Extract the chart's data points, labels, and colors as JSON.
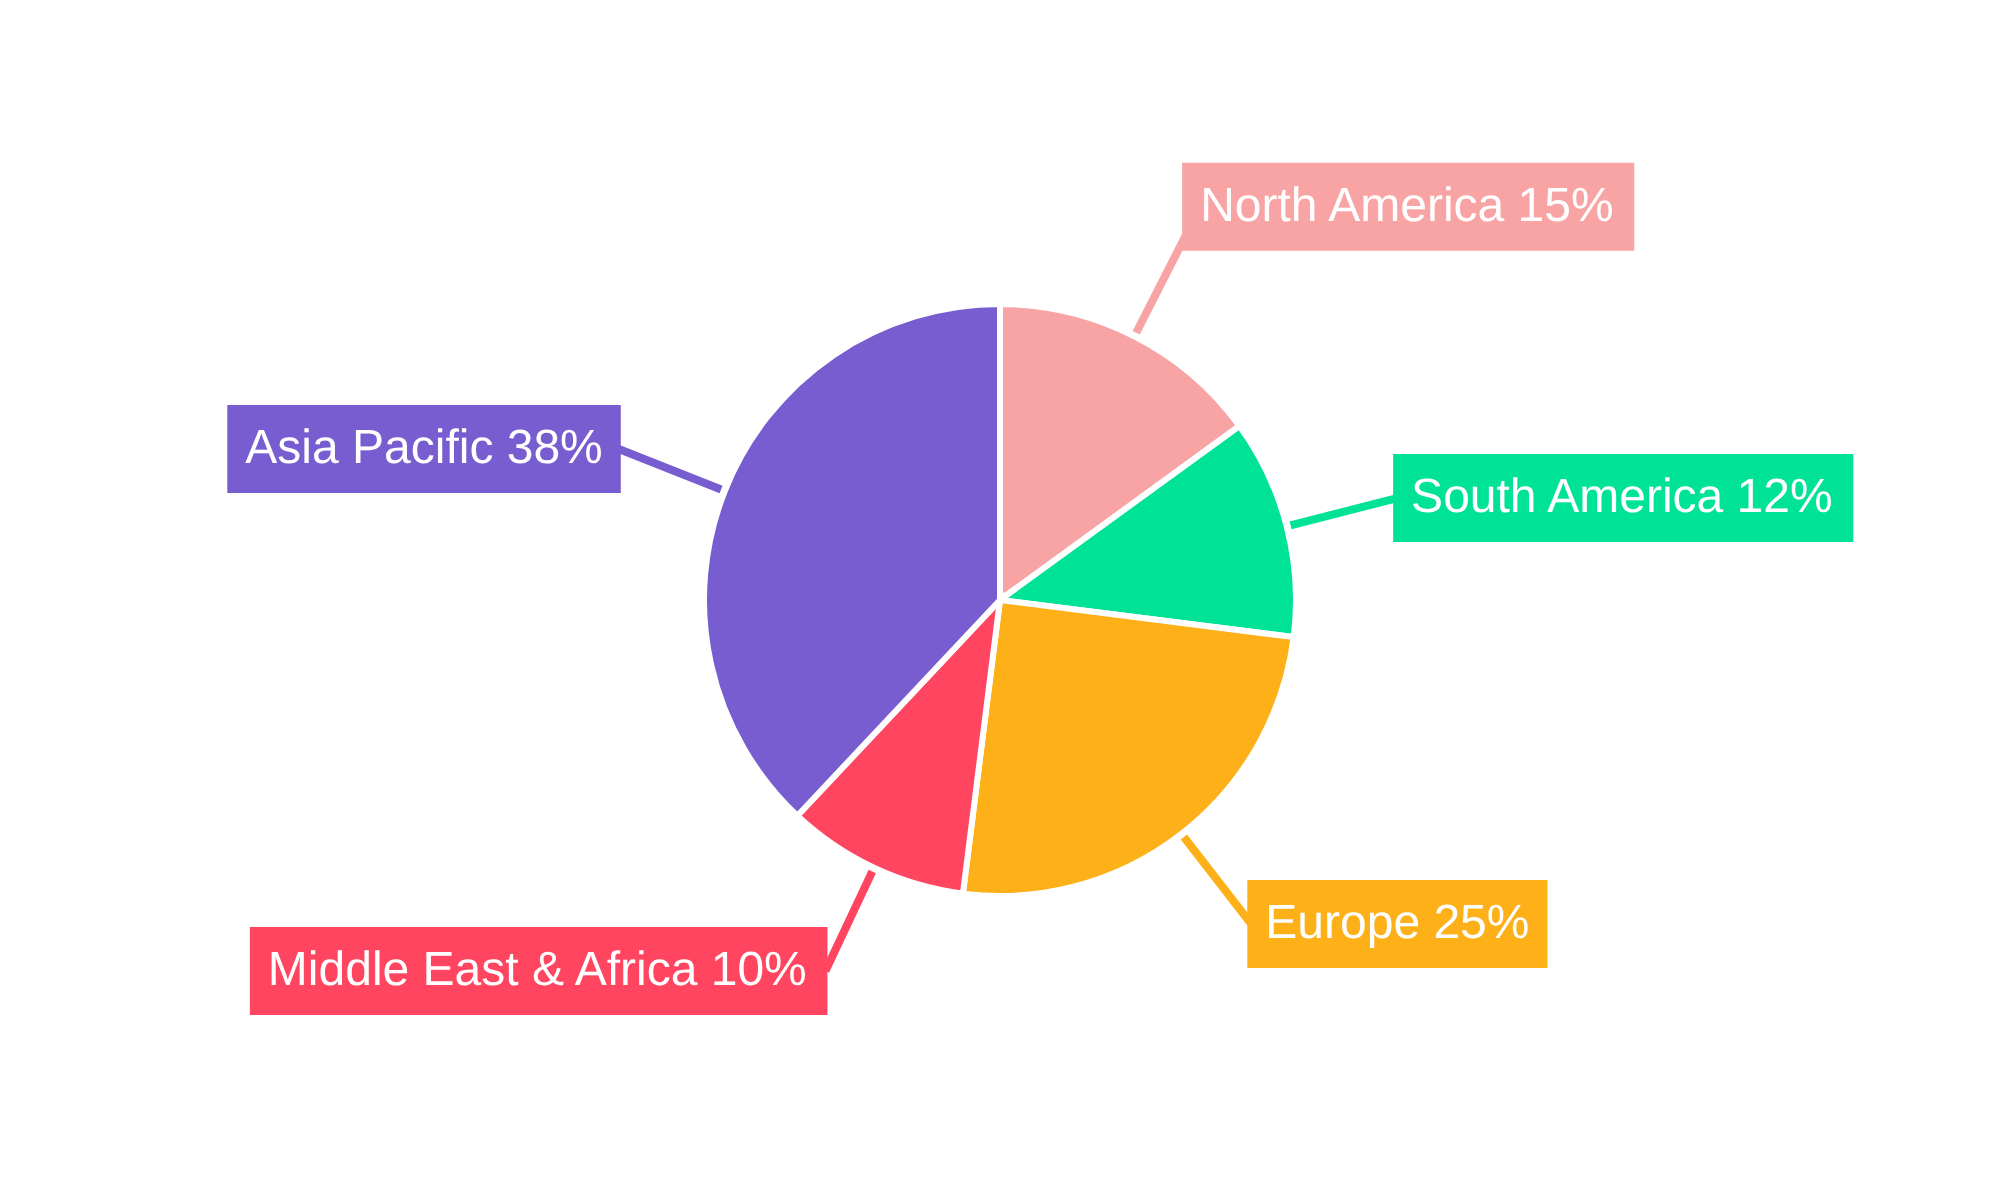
{
  "chart_data": {
    "type": "pie",
    "categories": [
      "North America",
      "South America",
      "Europe",
      "Middle East & Africa",
      "Asia Pacific"
    ],
    "values": [
      15,
      12,
      25,
      10,
      38
    ],
    "value_labels": [
      "15%",
      "12%",
      "25%",
      "10%",
      "38%"
    ],
    "colors": [
      "#f8a4a5",
      "#00e396",
      "#feb019",
      "#ff4560",
      "#775dd0"
    ]
  }
}
